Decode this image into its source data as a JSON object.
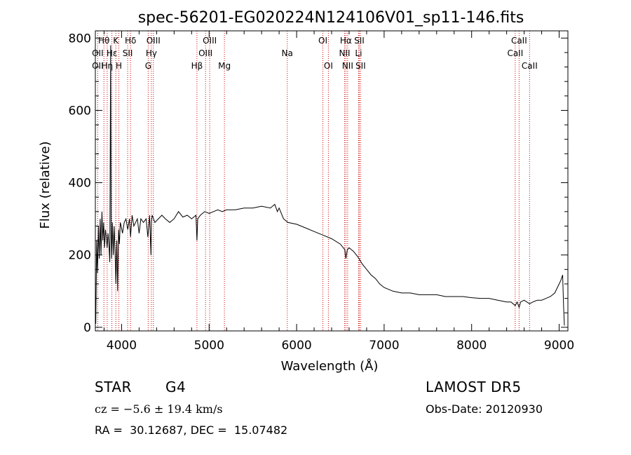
{
  "chart_data": {
    "type": "line",
    "title": "spec-56201-EG020224N124106V01_sp11-146.fits",
    "xlabel": "Wavelength (Å)",
    "ylabel": "Flux (relative)",
    "xlim": [
      3700,
      9100
    ],
    "ylim": [
      -10,
      820
    ],
    "x_ticks": [
      4000,
      5000,
      6000,
      7000,
      8000,
      9000
    ],
    "y_ticks": [
      0,
      200,
      400,
      600,
      800
    ],
    "grid": false,
    "series": [
      {
        "x": [
          3705,
          3715,
          3725,
          3735,
          3745,
          3755,
          3765,
          3775,
          3785,
          3795,
          3805,
          3815,
          3825,
          3835,
          3845,
          3855,
          3865,
          3875,
          3880,
          3885,
          3895,
          3905,
          3915,
          3925,
          3935,
          3945,
          3955,
          3965,
          3975,
          3985,
          3995,
          4010,
          4030,
          4050,
          4070,
          4090,
          4102,
          4120,
          4140,
          4160,
          4180,
          4200,
          4220,
          4250,
          4280,
          4300,
          4320,
          4335,
          4340,
          4350,
          4380,
          4420,
          4460,
          4500,
          4550,
          4600,
          4650,
          4700,
          4750,
          4800,
          4850,
          4861,
          4870,
          4900,
          4950,
          5000,
          5050,
          5100,
          5150,
          5200,
          5300,
          5400,
          5500,
          5600,
          5700,
          5750,
          5780,
          5800,
          5850,
          5900,
          6000,
          6100,
          6200,
          6300,
          6400,
          6500,
          6550,
          6563,
          6580,
          6600,
          6650,
          6700,
          6750,
          6800,
          6850,
          6900,
          6950,
          7000,
          7100,
          7200,
          7300,
          7400,
          7500,
          7600,
          7700,
          7800,
          7900,
          8000,
          8100,
          8200,
          8300,
          8400,
          8450,
          8498,
          8520,
          8542,
          8560,
          8600,
          8662,
          8700,
          8750,
          8800,
          8850,
          8900,
          8950,
          8980,
          9000,
          9020,
          9040,
          9050,
          9060
        ],
        "y": [
          10,
          240,
          150,
          280,
          190,
          300,
          200,
          320,
          240,
          290,
          220,
          270,
          250,
          220,
          260,
          230,
          180,
          780,
          260,
          190,
          290,
          200,
          280,
          210,
          120,
          240,
          100,
          270,
          230,
          290,
          280,
          260,
          290,
          300,
          270,
          300,
          250,
          310,
          280,
          290,
          300,
          260,
          300,
          290,
          300,
          250,
          310,
          200,
          290,
          310,
          290,
          300,
          310,
          300,
          290,
          300,
          320,
          305,
          310,
          300,
          310,
          240,
          300,
          310,
          320,
          315,
          320,
          325,
          320,
          325,
          325,
          330,
          330,
          335,
          330,
          340,
          320,
          330,
          300,
          290,
          285,
          275,
          265,
          255,
          245,
          230,
          215,
          190,
          215,
          220,
          210,
          195,
          175,
          160,
          145,
          135,
          120,
          110,
          100,
          95,
          95,
          90,
          90,
          90,
          85,
          85,
          85,
          82,
          80,
          80,
          75,
          70,
          70,
          60,
          70,
          55,
          70,
          75,
          65,
          70,
          75,
          75,
          80,
          85,
          95,
          110,
          120,
          130,
          145,
          60,
          5
        ]
      }
    ],
    "line_labels": [
      {
        "text": "Hθ",
        "x": 3798,
        "row": 1
      },
      {
        "text": "OII",
        "x": 3727,
        "row": 2
      },
      {
        "text": "OII",
        "x": 3727,
        "row": 3
      },
      {
        "text": "Hη",
        "x": 3835,
        "row": 3
      },
      {
        "text": "Hε",
        "x": 3889,
        "row": 2
      },
      {
        "text": "K",
        "x": 3934,
        "row": 1
      },
      {
        "text": "H",
        "x": 3969,
        "row": 3
      },
      {
        "text": "Hδ",
        "x": 4102,
        "row": 1
      },
      {
        "text": "SII",
        "x": 4069,
        "row": 2
      },
      {
        "text": "OIII",
        "x": 4363,
        "row": 1
      },
      {
        "text": "Hγ",
        "x": 4340,
        "row": 2
      },
      {
        "text": "G",
        "x": 4304,
        "row": 3
      },
      {
        "text": "Hβ",
        "x": 4861,
        "row": 3
      },
      {
        "text": "OIII",
        "x": 5007,
        "row": 1
      },
      {
        "text": "OIII",
        "x": 4959,
        "row": 2
      },
      {
        "text": "Mg",
        "x": 5175,
        "row": 3
      },
      {
        "text": "Na",
        "x": 5893,
        "row": 2
      },
      {
        "text": "OI",
        "x": 6300,
        "row": 1
      },
      {
        "text": "OI",
        "x": 6363,
        "row": 3
      },
      {
        "text": "Hα",
        "x": 6563,
        "row": 1
      },
      {
        "text": "NII",
        "x": 6548,
        "row": 2
      },
      {
        "text": "NII",
        "x": 6583,
        "row": 3
      },
      {
        "text": "SII",
        "x": 6716,
        "row": 1
      },
      {
        "text": "Li",
        "x": 6708,
        "row": 2
      },
      {
        "text": "SII",
        "x": 6731,
        "row": 3
      },
      {
        "text": "CaII",
        "x": 8498,
        "row": 2
      },
      {
        "text": "CaII",
        "x": 8542,
        "row": 1
      },
      {
        "text": "CaII",
        "x": 8662,
        "row": 3
      }
    ],
    "line_positions": [
      3727,
      3798,
      3835,
      3889,
      3934,
      3969,
      4069,
      4102,
      4304,
      4340,
      4363,
      4861,
      4959,
      5007,
      5175,
      5893,
      6300,
      6363,
      6548,
      6563,
      6583,
      6708,
      6716,
      6731,
      8498,
      8542,
      8662
    ]
  },
  "info": {
    "object_type": "STAR",
    "subclass": "G4",
    "survey": "LAMOST DR5",
    "redshift": "cz = −5.6 ± 19.4 km/s",
    "obs_date": "Obs-Date: 20120930",
    "coords": "RA =  30.12687, DEC =  15.07482"
  },
  "colors": {
    "spectrum": "#000000",
    "line_markers": "#cc0000",
    "axes": "#000000",
    "background": "#ffffff"
  }
}
